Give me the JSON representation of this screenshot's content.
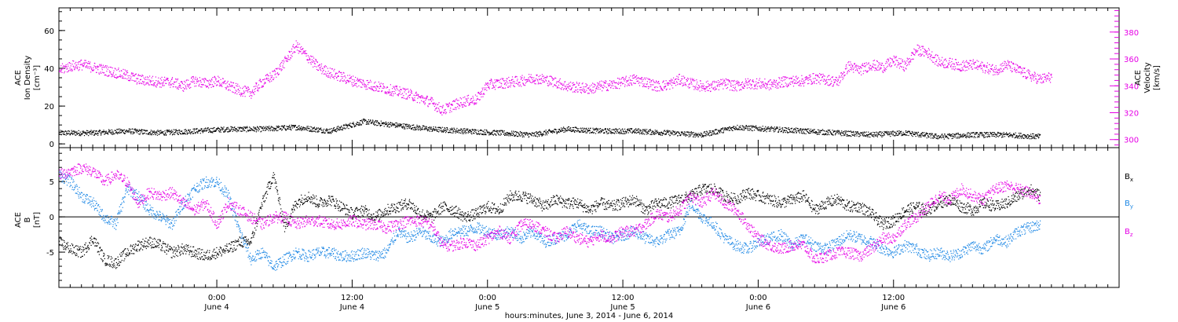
{
  "chart_data": [
    {
      "type": "scatter",
      "panel": "ion-density-velocity",
      "ylabel_lines": [
        "ACE",
        "Ion Density",
        "[cm⁻³]"
      ],
      "y2label_lines": [
        "ACE",
        "Velocity",
        "[km/s]"
      ],
      "ylim": [
        -2,
        72
      ],
      "yticks": [
        0,
        20,
        40,
        60
      ],
      "y2lim": [
        294,
        398
      ],
      "y2ticks": [
        300,
        320,
        340,
        360,
        380
      ],
      "grid": false,
      "series": [
        {
          "axis": "left",
          "color": "#000000",
          "x": [
            0,
            3,
            6,
            9,
            12,
            15,
            18,
            21,
            24,
            27,
            30,
            33,
            36,
            39,
            42,
            45,
            48,
            51,
            54,
            57,
            60,
            63,
            66,
            69,
            72,
            75,
            78,
            81,
            84,
            87
          ],
          "y": [
            6,
            6,
            7,
            6,
            7,
            8,
            8,
            9,
            7,
            12,
            10,
            8,
            7,
            6,
            5,
            8,
            7,
            7,
            6,
            5,
            9,
            8,
            7,
            6,
            5,
            6,
            4,
            5,
            5,
            4
          ]
        },
        {
          "axis": "right",
          "color": "#e600e6",
          "x": [
            0,
            1,
            2,
            3,
            4,
            5,
            6,
            7,
            8,
            9,
            10,
            11,
            12,
            13,
            14,
            15,
            16,
            17,
            18,
            19,
            20,
            21,
            22,
            23,
            24,
            25,
            26,
            27,
            28,
            29,
            30,
            31,
            32,
            33,
            34,
            35,
            36,
            37,
            38,
            39,
            40,
            41,
            42,
            43,
            44,
            45,
            46,
            47,
            48,
            49,
            50,
            51,
            52,
            53,
            54,
            55,
            56,
            57,
            58,
            59,
            60,
            61,
            62,
            63,
            64,
            65,
            66,
            67,
            68,
            69,
            70,
            71,
            72,
            73,
            74,
            75,
            76,
            77,
            78,
            79,
            80,
            81,
            82,
            83,
            84,
            85,
            86,
            87,
            88
          ],
          "y": [
            352,
            355,
            356,
            354,
            352,
            350,
            348,
            345,
            344,
            343,
            343,
            340,
            344,
            342,
            344,
            340,
            337,
            335,
            343,
            348,
            358,
            370,
            362,
            354,
            350,
            347,
            344,
            342,
            340,
            338,
            336,
            334,
            331,
            328,
            322,
            326,
            329,
            330,
            341,
            342,
            343,
            344,
            346,
            345,
            343,
            340,
            339,
            338,
            340,
            341,
            343,
            345,
            343,
            340,
            341,
            345,
            342,
            340,
            340,
            342,
            340,
            342,
            342,
            341,
            343,
            344,
            344,
            346,
            345,
            343,
            355,
            352,
            356,
            354,
            359,
            355,
            367,
            365,
            358,
            357,
            355,
            356,
            354,
            352,
            356,
            352,
            348,
            345,
            347
          ]
        }
      ]
    },
    {
      "type": "scatter",
      "panel": "magnetic-field",
      "ylabel_lines": [
        "ACE",
        "B",
        "[nT]"
      ],
      "ylim": [
        -10,
        9.8
      ],
      "yticks": [
        -5,
        0,
        5
      ],
      "zero_line": true,
      "grid": false,
      "legend_position": "right",
      "series": [
        {
          "name": "B",
          "name_sub": "x",
          "color": "#000000",
          "x": [
            0,
            1,
            2,
            3,
            4,
            5,
            6,
            7,
            8,
            9,
            10,
            11,
            12,
            13,
            14,
            15,
            16,
            17,
            18,
            19,
            20,
            21,
            22,
            23,
            24,
            25,
            26,
            27,
            28,
            29,
            30,
            31,
            32,
            33,
            34,
            35,
            36,
            37,
            38,
            39,
            40,
            41,
            42,
            43,
            44,
            45,
            46,
            47,
            48,
            49,
            50,
            51,
            52,
            53,
            54,
            55,
            56,
            57,
            58,
            59,
            60,
            61,
            62,
            63,
            64,
            65,
            66,
            67,
            68,
            69,
            70,
            71,
            72,
            73,
            74,
            75,
            76,
            77,
            78,
            79,
            80,
            81,
            82,
            83,
            84,
            85,
            86,
            87
          ],
          "y": [
            -3.5,
            -4.5,
            -5,
            -3,
            -6,
            -6.5,
            -5,
            -4,
            -3.5,
            -4,
            -5,
            -4.5,
            -5,
            -5.5,
            -5,
            -4.5,
            -3.5,
            -3.5,
            2,
            6,
            -1.5,
            2,
            3,
            2,
            2.5,
            1.5,
            0.5,
            1,
            0,
            1,
            1.5,
            2,
            0.5,
            0,
            1.5,
            1,
            0,
            0.5,
            1.5,
            1,
            3,
            3,
            2.5,
            1.5,
            2.5,
            2,
            2,
            1,
            2,
            1.5,
            2,
            2.5,
            1,
            2,
            2,
            2.5,
            3,
            4,
            4,
            3,
            2.5,
            3.5,
            3,
            2.5,
            2,
            2.5,
            3,
            1,
            2,
            2.5,
            1.5,
            1.5,
            0.5,
            -1,
            -0.5,
            1,
            1.5,
            1,
            2,
            2.5,
            1.5,
            1,
            2,
            1.5,
            2,
            3,
            4,
            3
          ]
        },
        {
          "name": "B",
          "name_sub": "y",
          "color": "#1e88e5",
          "x": [
            0,
            1,
            2,
            3,
            4,
            5,
            6,
            7,
            8,
            9,
            10,
            11,
            12,
            13,
            14,
            15,
            16,
            17,
            18,
            19,
            20,
            21,
            22,
            23,
            24,
            25,
            26,
            27,
            28,
            29,
            30,
            31,
            32,
            33,
            34,
            35,
            36,
            37,
            38,
            39,
            40,
            41,
            42,
            43,
            44,
            45,
            46,
            47,
            48,
            49,
            50,
            51,
            52,
            53,
            54,
            55,
            56,
            57,
            58,
            59,
            60,
            61,
            62,
            63,
            64,
            65,
            66,
            67,
            68,
            69,
            70,
            71,
            72,
            73,
            74,
            75,
            76,
            77,
            78,
            79,
            80,
            81,
            82,
            83,
            84,
            85,
            86,
            87
          ],
          "y": [
            6,
            5,
            3,
            2,
            0,
            -1,
            4,
            3,
            1,
            0,
            -1,
            2,
            4,
            5,
            5,
            3,
            -2,
            -6,
            -5,
            -7,
            -6,
            -5,
            -5.5,
            -5,
            -5,
            -5.5,
            -5.5,
            -5,
            -5.5,
            -5,
            -2,
            -3,
            -2,
            -3,
            -3.5,
            -2,
            -2,
            -1.5,
            -2,
            -2.5,
            -2,
            -3,
            -2,
            -3.5,
            -3,
            -2.5,
            -1,
            -2,
            -2,
            -3,
            -2.5,
            -2,
            -3,
            -3.5,
            -2.5,
            -2,
            2,
            0,
            -1,
            -3,
            -4,
            -4.5,
            -3.5,
            -3,
            -2.5,
            -4,
            -3,
            -4,
            -4.5,
            -3.5,
            -2.5,
            -3,
            -3.5,
            -4.5,
            -5,
            -4,
            -4.5,
            -5.5,
            -5,
            -5.5,
            -5,
            -4,
            -4.5,
            -3,
            -3.5,
            -2,
            -1.5,
            -1
          ]
        },
        {
          "name": "B",
          "name_sub": "z",
          "color": "#e600e6",
          "x": [
            0,
            1,
            2,
            3,
            4,
            5,
            6,
            7,
            8,
            9,
            10,
            11,
            12,
            13,
            14,
            15,
            16,
            17,
            18,
            19,
            20,
            21,
            22,
            23,
            24,
            25,
            26,
            27,
            28,
            29,
            30,
            31,
            32,
            33,
            34,
            35,
            36,
            37,
            38,
            39,
            40,
            41,
            42,
            43,
            44,
            45,
            46,
            47,
            48,
            49,
            50,
            51,
            52,
            53,
            54,
            55,
            56,
            57,
            58,
            59,
            60,
            61,
            62,
            63,
            64,
            65,
            66,
            67,
            68,
            69,
            70,
            71,
            72,
            73,
            74,
            75,
            76,
            77,
            78,
            79,
            80,
            81,
            82,
            83,
            84,
            85,
            86,
            87
          ],
          "y": [
            6,
            6.5,
            7,
            6.5,
            5,
            6,
            5,
            2,
            3.5,
            3,
            3.5,
            2,
            1,
            2,
            -1,
            2,
            1,
            0,
            -1,
            0,
            0,
            -1,
            -0.5,
            -0.5,
            -1,
            -1,
            -0.5,
            -1,
            -1,
            -1.5,
            -1,
            -0.5,
            -0.5,
            -1,
            -4,
            -4,
            -3.5,
            -4,
            -3,
            -2,
            -3,
            -1,
            -1,
            -2,
            -3,
            -2,
            -3,
            -3.5,
            -2.5,
            -3,
            -2,
            -2,
            -1,
            0.5,
            0,
            1,
            3,
            2,
            3.5,
            2,
            1,
            -1,
            -3,
            -4,
            -4.5,
            -4,
            -4,
            -6,
            -5.5,
            -5,
            -5,
            -5.5,
            -4.5,
            -3,
            -3,
            -1,
            0,
            1.5,
            3,
            2.5,
            4,
            3,
            2.5,
            4,
            4.5,
            4,
            3.5,
            2.5
          ]
        }
      ]
    }
  ],
  "x_axis": {
    "tick_labels": [
      {
        "time": "0:00",
        "date": "June 4",
        "hour": 14
      },
      {
        "time": "12:00",
        "date": "June 4",
        "hour": 26
      },
      {
        "time": "0:00",
        "date": "June 5",
        "hour": 38
      },
      {
        "time": "12:00",
        "date": "June 5",
        "hour": 50
      },
      {
        "time": "0:00",
        "date": "June 6",
        "hour": 62
      },
      {
        "time": "12:00",
        "date": "June 6",
        "hour": 74
      }
    ],
    "xlim_hours": [
      0,
      94
    ],
    "major_tick_every_hours": 12,
    "minor_tick_every_hours": 1,
    "title": "hours:minutes, June  3, 2014 - June  6, 2014"
  },
  "colors": {
    "black": "#000000",
    "magenta": "#e600e6",
    "blue": "#1e88e5",
    "axis": "#000000"
  }
}
